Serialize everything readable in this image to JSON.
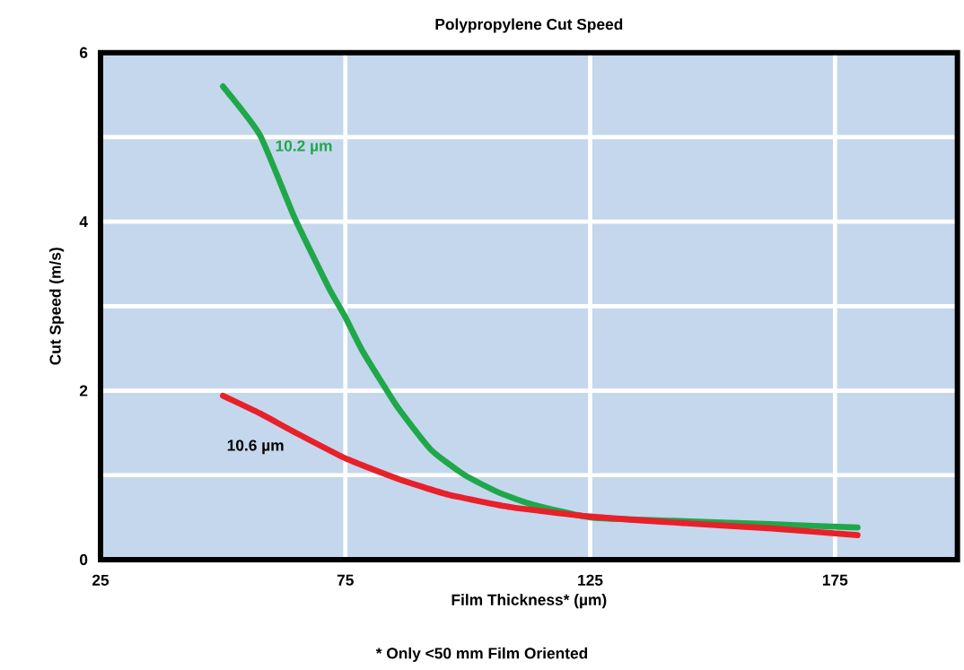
{
  "chart_data": {
    "type": "line",
    "title": "Polypropylene Cut Speed",
    "xlabel": "Film Thickness* (µm)",
    "ylabel": "Cut Speed (m/s)",
    "annotations": [
      "* Only <50 mm Film Oriented"
    ],
    "xlim": [
      25,
      200
    ],
    "xticks": [
      25,
      75,
      125,
      175
    ],
    "ylim": [
      0,
      6
    ],
    "yticks": [
      0,
      {
        "value": 1,
        "label": null
      },
      2,
      {
        "value": 3,
        "label": null
      },
      4,
      {
        "value": 5,
        "label": null
      },
      6
    ],
    "grid": true,
    "legend": false,
    "marker": "none",
    "line_style": "solid",
    "series": [
      {
        "name": "10.2 µm",
        "color": "#1fa84a",
        "x": [
          50,
          57.6,
          64.6,
          71.5,
          75,
          78.6,
          85.6,
          92.5,
          99.4,
          106.5,
          113.4,
          125,
          142,
          162,
          179.6
        ],
        "values": [
          5.6,
          5.02,
          4.05,
          3.23,
          2.87,
          2.46,
          1.81,
          1.3,
          1.0,
          0.79,
          0.65,
          0.5,
          0.46,
          0.42,
          0.38
        ]
      },
      {
        "name": "10.6 µm",
        "color": "#e8202a",
        "x": [
          50,
          57.6,
          64.6,
          75,
          85.6,
          96,
          108.9,
          125,
          142,
          162,
          179.6
        ],
        "values": [
          1.94,
          1.73,
          1.51,
          1.2,
          0.96,
          0.77,
          0.62,
          0.51,
          0.44,
          0.37,
          0.29
        ]
      }
    ]
  }
}
